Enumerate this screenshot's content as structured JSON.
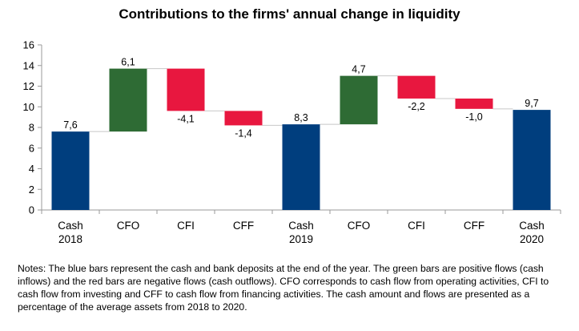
{
  "chart_data": {
    "type": "waterfall",
    "title": "Contributions to the firms' annual change in liquidity",
    "xlabel": "",
    "ylabel": "",
    "ylim": [
      0,
      16
    ],
    "yticks": [
      0,
      2,
      4,
      6,
      8,
      10,
      12,
      14,
      16
    ],
    "grid": false,
    "categories": [
      [
        "Cash",
        "2018"
      ],
      [
        "CFO"
      ],
      [
        "CFI"
      ],
      [
        "CFF"
      ],
      [
        "Cash",
        "2019"
      ],
      [
        "CFO"
      ],
      [
        "CFI"
      ],
      [
        "CFF"
      ],
      [
        "Cash",
        "2020"
      ]
    ],
    "bars": [
      {
        "kind": "cash",
        "start": 0,
        "end": 7.6,
        "value": 7.6,
        "label": "7,6"
      },
      {
        "kind": "inflow",
        "start": 7.6,
        "end": 13.7,
        "value": 6.1,
        "label": "6,1"
      },
      {
        "kind": "outflow",
        "start": 13.7,
        "end": 9.6,
        "value": -4.1,
        "label": "-4,1"
      },
      {
        "kind": "outflow",
        "start": 9.6,
        "end": 8.2,
        "value": -1.4,
        "label": "-1,4"
      },
      {
        "kind": "cash",
        "start": 0,
        "end": 8.3,
        "value": 8.3,
        "label": "8,3"
      },
      {
        "kind": "inflow",
        "start": 8.3,
        "end": 13.0,
        "value": 4.7,
        "label": "4,7"
      },
      {
        "kind": "outflow",
        "start": 13.0,
        "end": 10.8,
        "value": -2.2,
        "label": "-2,2"
      },
      {
        "kind": "outflow",
        "start": 10.8,
        "end": 9.8,
        "value": -1.0,
        "label": "-1,0"
      },
      {
        "kind": "cash",
        "start": 0,
        "end": 9.7,
        "value": 9.7,
        "label": "9,7"
      }
    ],
    "colors": {
      "cash": "#003e7e",
      "inflow": "#2e6b34",
      "outflow": "#e8173f",
      "connector": "#c8c8c8",
      "axis": "#9a9a9a"
    }
  },
  "notes": "Notes: The blue bars represent the cash and bank deposits at the end of the year. The green bars are positive flows (cash inflows) and the red bars are negative flows (cash outflows). CFO corresponds to cash flow from operating activities, CFI to cash flow from investing and CFF to cash flow from financing activities. The cash amount and flows are presented as a percentage of the average assets from 2018 to 2020."
}
